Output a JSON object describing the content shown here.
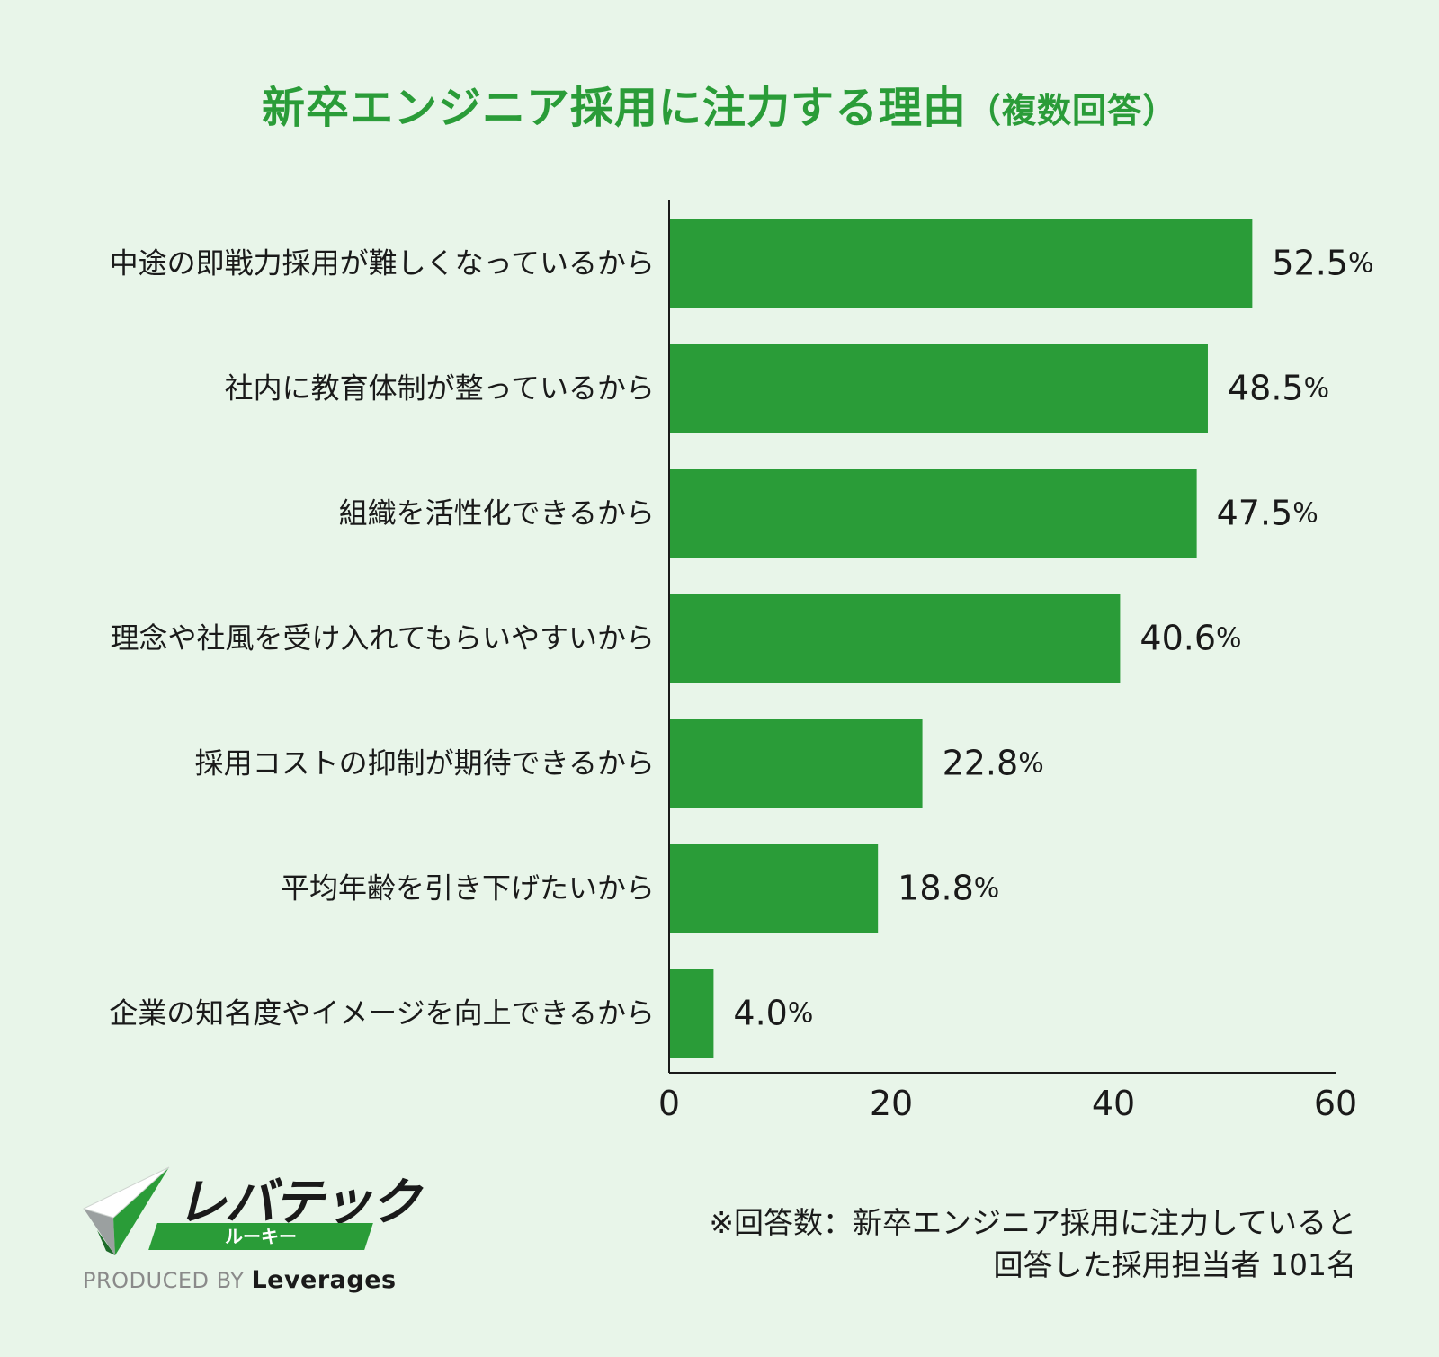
{
  "title": {
    "main": "新卒エンジニア採用に注力する理由",
    "sub": "（複数回答）"
  },
  "chart_data": {
    "type": "bar",
    "orientation": "horizontal",
    "categories": [
      "中途の即戦力採用が難しくなっているから",
      "社内に教育体制が整っているから",
      "組織を活性化できるから",
      "理念や社風を受け入れてもらいやすいから",
      "採用コストの抑制が期待できるから",
      "平均年齢を引き下げたいから",
      "企業の知名度やイメージを向上できるから"
    ],
    "values": [
      52.5,
      48.5,
      47.5,
      40.6,
      22.8,
      18.8,
      4.0
    ],
    "value_labels": [
      "52.5",
      "48.5",
      "47.5",
      "40.6",
      "22.8",
      "18.8",
      "4.0"
    ],
    "value_suffix": "%",
    "xlim": [
      0,
      60
    ],
    "xticks": [
      "0",
      "20",
      "40",
      "60"
    ],
    "grid": false,
    "bar_color": "#2a9c38"
  },
  "logo": {
    "name": "レバテック",
    "sub": "ルーキー",
    "produced_by": "PRODUCED BY",
    "company": "Leverages"
  },
  "note": {
    "line1": "※回答数：新卒エンジニア採用に注力していると",
    "line2": "回答した採用担当者 101名"
  }
}
